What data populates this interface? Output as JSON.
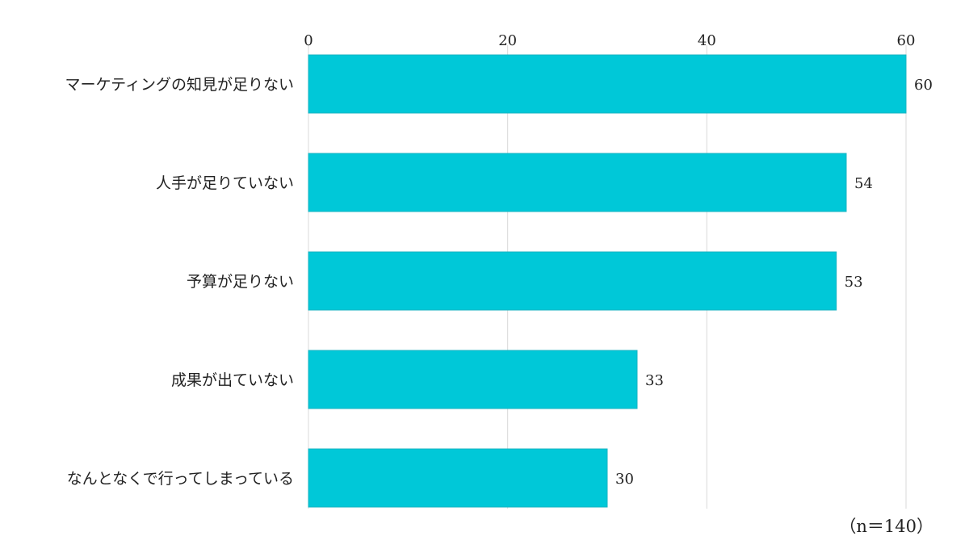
{
  "chart_data": {
    "type": "bar",
    "orientation": "horizontal",
    "categories": [
      "マーケティングの知見が足りない",
      "人手が足りていない",
      "予算が足りない",
      "成果が出ていない",
      "なんとなくで行ってしまっている"
    ],
    "values": [
      60,
      54,
      53,
      33,
      30
    ],
    "xlim": [
      0,
      60
    ],
    "ticks": [
      "0",
      "20",
      "40",
      "60"
    ],
    "tick_values": [
      0,
      20,
      40,
      60
    ],
    "axis_position": "top",
    "grid": true,
    "bar_color": "#00c8d8",
    "grid_color": "#d9d9d9",
    "note": "（n＝140）"
  }
}
